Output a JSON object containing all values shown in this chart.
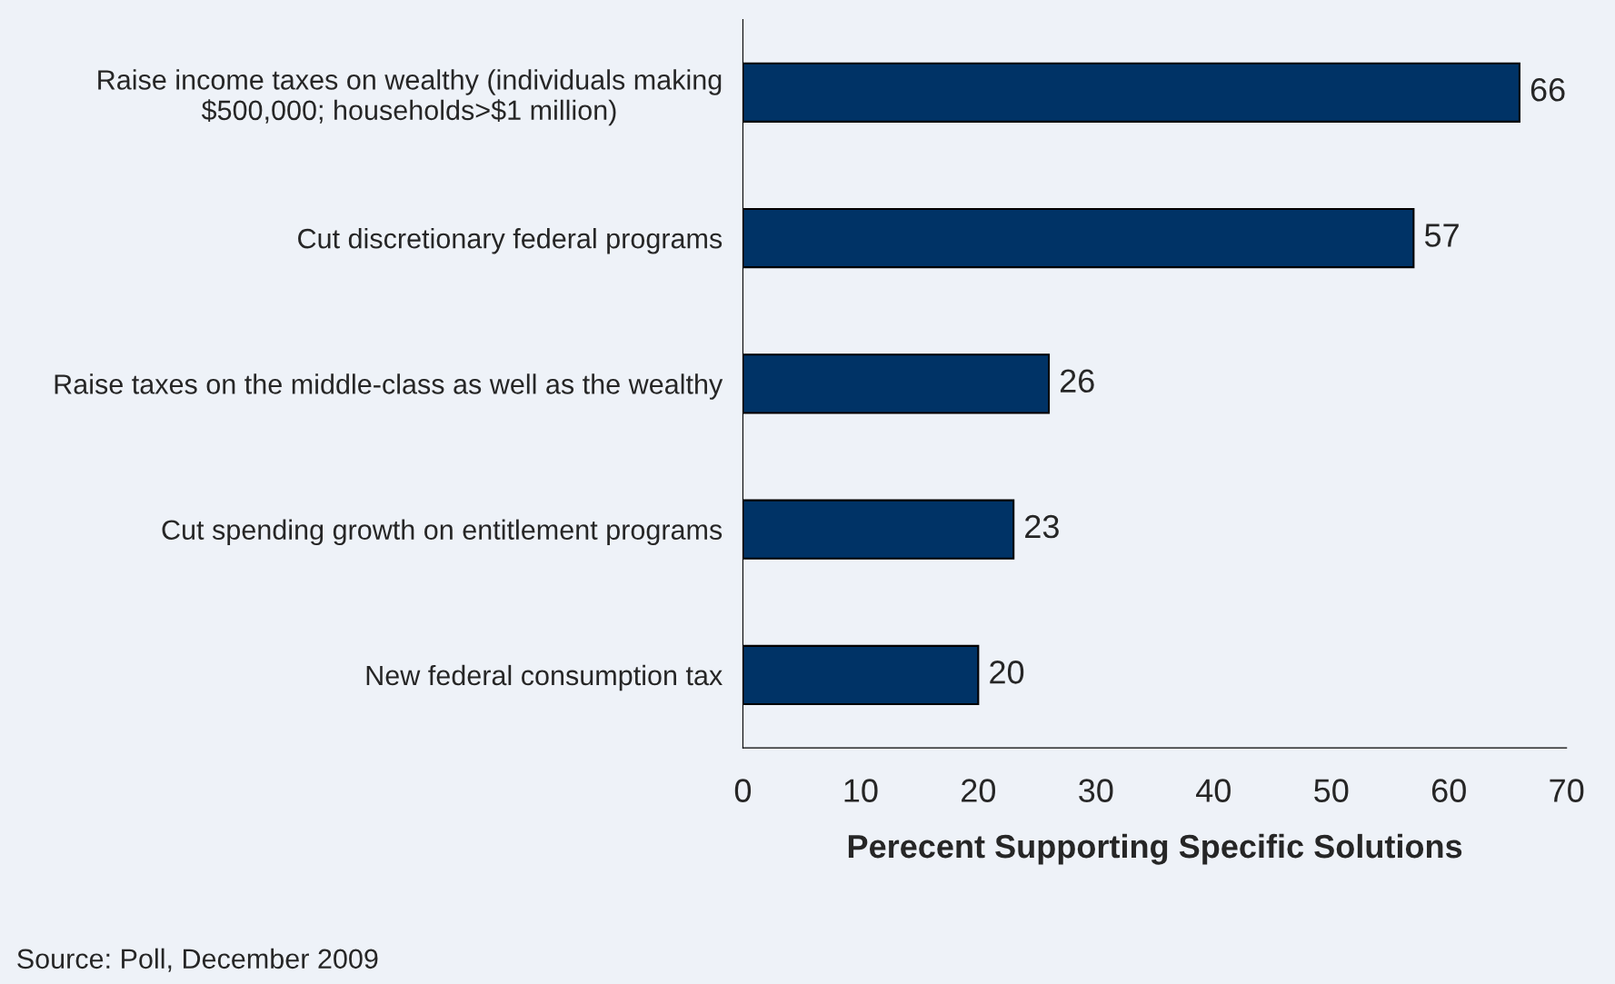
{
  "chart_data": {
    "type": "bar",
    "orientation": "horizontal",
    "xlabel": "Perecent Supporting Specific Solutions",
    "categories": [
      "Raise income taxes on wealthy (individuals making\n$500,000; households>$1 million)",
      "Cut discretionary federal programs",
      "Raise taxes on the middle-class as well as the wealthy",
      "Cut spending growth on entitlement programs",
      "New federal consumption tax"
    ],
    "values": [
      66,
      57,
      26,
      23,
      20
    ],
    "color": "#003366",
    "data_labels": true,
    "xlim": [
      0,
      70
    ],
    "xticks": [
      0,
      10,
      20,
      30,
      40,
      50,
      60,
      70
    ],
    "grid": false,
    "annotations": [
      "Source: Poll, December 2009"
    ]
  }
}
